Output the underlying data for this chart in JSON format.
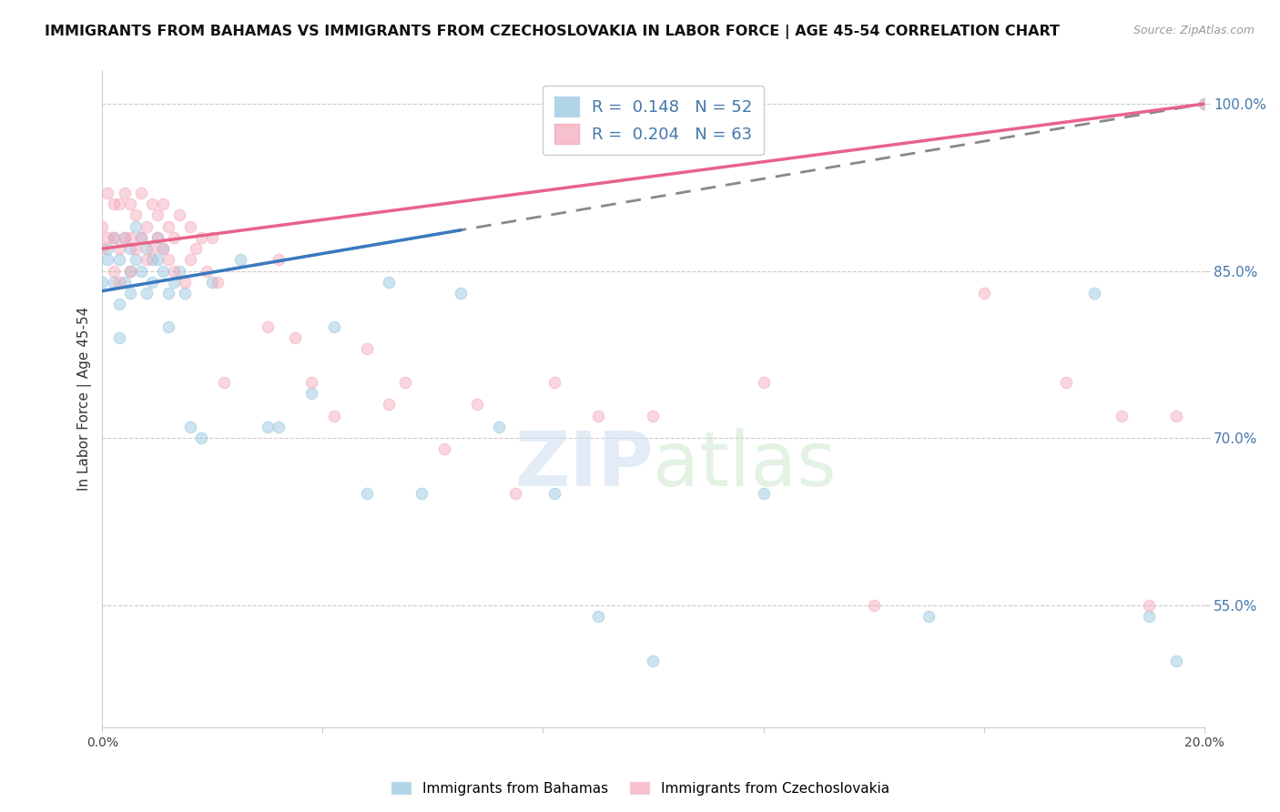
{
  "title": "IMMIGRANTS FROM BAHAMAS VS IMMIGRANTS FROM CZECHOSLOVAKIA IN LABOR FORCE | AGE 45-54 CORRELATION CHART",
  "source": "Source: ZipAtlas.com",
  "ylabel": "In Labor Force | Age 45-54",
  "xlim": [
    0.0,
    0.2
  ],
  "ylim": [
    0.44,
    1.03
  ],
  "yticks": [
    0.55,
    0.7,
    0.85,
    1.0
  ],
  "yticklabels": [
    "55.0%",
    "70.0%",
    "85.0%",
    "100.0%"
  ],
  "blue_color": "#92c5de",
  "pink_color": "#f4a6b8",
  "blue_line_color": "#3a7abf",
  "pink_line_color": "#e8638a",
  "blue_dash_color": "#aaaaaa",
  "grid_color": "#cccccc",
  "background_color": "#ffffff",
  "blue_x": [
    0.0,
    0.001,
    0.001,
    0.002,
    0.002,
    0.003,
    0.003,
    0.003,
    0.004,
    0.004,
    0.005,
    0.005,
    0.005,
    0.006,
    0.006,
    0.007,
    0.007,
    0.008,
    0.008,
    0.009,
    0.009,
    0.01,
    0.01,
    0.011,
    0.011,
    0.012,
    0.012,
    0.013,
    0.014,
    0.015,
    0.016,
    0.018,
    0.02,
    0.025,
    0.03,
    0.032,
    0.038,
    0.042,
    0.048,
    0.052,
    0.058,
    0.065,
    0.072,
    0.082,
    0.09,
    0.1,
    0.12,
    0.15,
    0.18,
    0.19,
    0.195,
    0.2
  ],
  "blue_y": [
    0.84,
    0.87,
    0.86,
    0.88,
    0.84,
    0.86,
    0.82,
    0.79,
    0.88,
    0.84,
    0.87,
    0.85,
    0.83,
    0.89,
    0.86,
    0.88,
    0.85,
    0.87,
    0.83,
    0.86,
    0.84,
    0.88,
    0.86,
    0.87,
    0.85,
    0.83,
    0.8,
    0.84,
    0.85,
    0.83,
    0.71,
    0.7,
    0.84,
    0.86,
    0.71,
    0.71,
    0.74,
    0.8,
    0.65,
    0.84,
    0.65,
    0.83,
    0.71,
    0.65,
    0.54,
    0.5,
    0.65,
    0.54,
    0.83,
    0.54,
    0.5,
    1.0
  ],
  "pink_x": [
    0.0,
    0.0,
    0.001,
    0.001,
    0.002,
    0.002,
    0.002,
    0.003,
    0.003,
    0.003,
    0.004,
    0.004,
    0.005,
    0.005,
    0.005,
    0.006,
    0.006,
    0.007,
    0.007,
    0.008,
    0.008,
    0.009,
    0.009,
    0.01,
    0.01,
    0.011,
    0.011,
    0.012,
    0.012,
    0.013,
    0.013,
    0.014,
    0.015,
    0.016,
    0.016,
    0.017,
    0.018,
    0.019,
    0.02,
    0.021,
    0.022,
    0.03,
    0.032,
    0.035,
    0.038,
    0.042,
    0.048,
    0.052,
    0.055,
    0.062,
    0.068,
    0.075,
    0.082,
    0.09,
    0.1,
    0.12,
    0.14,
    0.16,
    0.175,
    0.185,
    0.19,
    0.195,
    0.2
  ],
  "pink_y": [
    0.89,
    0.87,
    0.92,
    0.88,
    0.91,
    0.88,
    0.85,
    0.91,
    0.87,
    0.84,
    0.92,
    0.88,
    0.91,
    0.88,
    0.85,
    0.9,
    0.87,
    0.92,
    0.88,
    0.89,
    0.86,
    0.91,
    0.87,
    0.9,
    0.88,
    0.91,
    0.87,
    0.89,
    0.86,
    0.88,
    0.85,
    0.9,
    0.84,
    0.89,
    0.86,
    0.87,
    0.88,
    0.85,
    0.88,
    0.84,
    0.75,
    0.8,
    0.86,
    0.79,
    0.75,
    0.72,
    0.78,
    0.73,
    0.75,
    0.69,
    0.73,
    0.65,
    0.75,
    0.72,
    0.72,
    0.75,
    0.55,
    0.83,
    0.75,
    0.72,
    0.55,
    0.72,
    1.0
  ],
  "marker_size": 80,
  "alpha": 0.45,
  "title_fontsize": 11.5,
  "legend_fontsize": 13,
  "axis_color": "#4477aa"
}
